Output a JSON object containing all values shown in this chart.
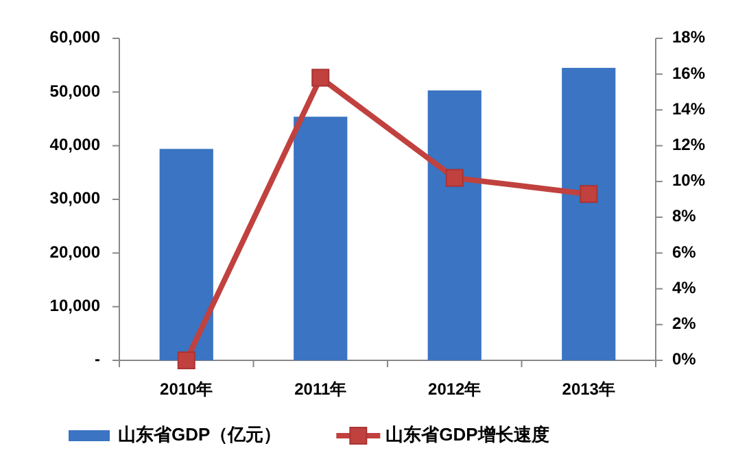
{
  "chart_data": {
    "type": "bar",
    "categories": [
      "2010年",
      "2011年",
      "2012年",
      "2013年"
    ],
    "series": [
      {
        "name": "山东省GDP（亿元）",
        "color": "#3a74c2",
        "values": [
          39400,
          45400,
          50300,
          54500
        ]
      },
      {
        "name": "山东省GDP增长速度",
        "type": "line",
        "axis": "y2",
        "color": "#c0413e",
        "marker": "square",
        "values": [
          0,
          15.8,
          10.2,
          9.3
        ]
      }
    ],
    "ylim": [
      0,
      60000
    ],
    "yticks": [
      {
        "value": 0,
        "label": "-"
      },
      {
        "value": 10000,
        "label": "10,000"
      },
      {
        "value": 20000,
        "label": "20,000"
      },
      {
        "value": 30000,
        "label": "30,000"
      },
      {
        "value": 40000,
        "label": "40,000"
      },
      {
        "value": 50000,
        "label": "50,000"
      },
      {
        "value": 60000,
        "label": "60,000"
      }
    ],
    "y2lim": [
      0,
      18
    ],
    "y2ticks": [
      {
        "value": 0,
        "label": "0%"
      },
      {
        "value": 2,
        "label": "2%"
      },
      {
        "value": 4,
        "label": "4%"
      },
      {
        "value": 6,
        "label": "6%"
      },
      {
        "value": 8,
        "label": "8%"
      },
      {
        "value": 10,
        "label": "10%"
      },
      {
        "value": 12,
        "label": "12%"
      },
      {
        "value": 14,
        "label": "14%"
      },
      {
        "value": 16,
        "label": "16%"
      },
      {
        "value": 18,
        "label": "18%"
      }
    ],
    "legend": "bottom"
  }
}
